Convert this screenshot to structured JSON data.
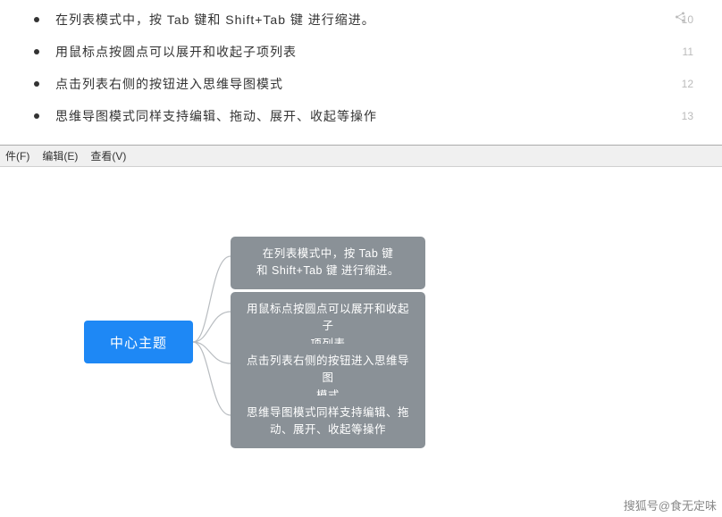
{
  "list": {
    "items": [
      {
        "text": "在列表模式中，按 Tab 键和 Shift+Tab 键 进行缩进。",
        "line": "10"
      },
      {
        "text": "用鼠标点按圆点可以展开和收起子项列表",
        "line": "11"
      },
      {
        "text": "点击列表右侧的按钮进入思维导图模式",
        "line": "12"
      },
      {
        "text": "思维导图模式同样支持编辑、拖动、展开、收起等操作",
        "line": "13"
      }
    ]
  },
  "menu": {
    "file": "件(F)",
    "edit": "编辑(E)",
    "view": "查看(V)"
  },
  "mindmap": {
    "type": "tree",
    "center_color": "#1e88f5",
    "child_color": "#8a9197",
    "connector_color": "#b8bcc0",
    "center": {
      "label": "中心主题"
    },
    "children": [
      {
        "label": "在列表模式中，按 Tab 键\n和 Shift+Tab 键 进行缩进。"
      },
      {
        "label": "用鼠标点按圆点可以展开和收起子\n项列表"
      },
      {
        "label": "点击列表右侧的按钮进入思维导图\n模式"
      },
      {
        "label": "思维导图模式同样支持编辑、拖\n动、展开、收起等操作"
      }
    ]
  },
  "watermark": "搜狐号@食无定味"
}
